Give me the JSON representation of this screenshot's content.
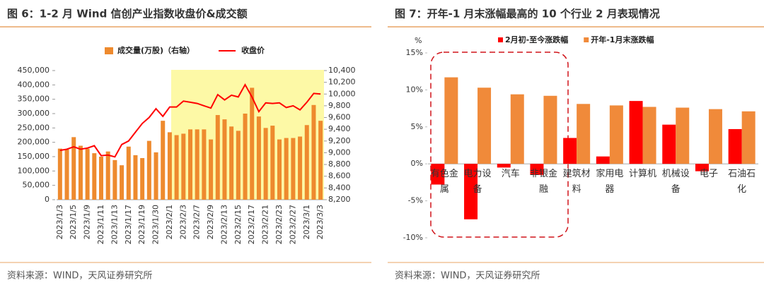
{
  "chart_data": [
    {
      "type": "combo",
      "title": "图 6：1-2 月 Wind 信创产业指数收盘价&成交额",
      "source": "资料来源：WIND，天风证券研究所",
      "categories": [
        "2023/1/3",
        null,
        "2023/1/5",
        null,
        "2023/1/9",
        null,
        "2023/1/11",
        null,
        "2023/1/13",
        null,
        "2023/1/17",
        null,
        "2023/1/19",
        null,
        "2023/1/30",
        null,
        "2023/2/1",
        null,
        "2023/2/3",
        null,
        "2023/2/7",
        null,
        "2023/2/9",
        null,
        "2023/2/13",
        null,
        "2023/2/15",
        null,
        "2023/2/17",
        null,
        "2023/2/21",
        null,
        "2023/2/23",
        null,
        "2023/2/27",
        null,
        "2023/3/1",
        null,
        "2023/3/3"
      ],
      "series": [
        {
          "name": "成交量(万股)（右轴）",
          "type": "bar",
          "color": "#ee8a2e",
          "values": [
            178000,
            175000,
            218000,
            188000,
            178000,
            162000,
            150000,
            168000,
            138000,
            120000,
            185000,
            155000,
            145000,
            205000,
            165000,
            275000,
            235000,
            225000,
            230000,
            245000,
            245000,
            245000,
            210000,
            295000,
            280000,
            255000,
            240000,
            300000,
            390000,
            290000,
            250000,
            258000,
            210000,
            215000,
            215000,
            220000,
            260000,
            330000,
            275000
          ]
        },
        {
          "name": "收盘价",
          "type": "line",
          "axis": "y2",
          "color": "#ff0000",
          "values": [
            9040,
            9060,
            9100,
            9060,
            9080,
            9120,
            8950,
            8960,
            8930,
            9140,
            9200,
            9350,
            9500,
            9600,
            9750,
            9620,
            9780,
            9780,
            9880,
            9860,
            9840,
            9800,
            9760,
            9990,
            9900,
            9980,
            9950,
            10160,
            9950,
            9700,
            9850,
            9840,
            9850,
            9770,
            9800,
            9730,
            9860,
            10010,
            10000
          ]
        }
      ],
      "ylim": [
        0,
        450000
      ],
      "yticks": [
        0,
        {
          "value": 50000,
          "label": "50,000"
        },
        {
          "value": 100000,
          "label": "100,000"
        },
        {
          "value": 150000,
          "label": "150,000"
        },
        {
          "value": 200000,
          "label": "200,000"
        },
        {
          "value": 250000,
          "label": "250,000"
        },
        {
          "value": 300000,
          "label": "300,000"
        },
        {
          "value": 350000,
          "label": "350,000"
        },
        {
          "value": 400000,
          "label": "400,000"
        },
        {
          "value": 450000,
          "label": "450,000"
        }
      ],
      "y2lim": [
        8200,
        10400
      ],
      "y2ticks": [
        {
          "value": 8200,
          "label": "8,200"
        },
        {
          "value": 8400,
          "label": "8,400"
        },
        {
          "value": 8600,
          "label": "8,600"
        },
        {
          "value": 8800,
          "label": "8,800"
        },
        {
          "value": 9000,
          "label": "9,000"
        },
        {
          "value": 9200,
          "label": "9,200"
        },
        {
          "value": 9400,
          "label": "9,400"
        },
        {
          "value": 9600,
          "label": "9,600"
        },
        {
          "value": 9800,
          "label": "9,800"
        },
        {
          "value": 10000,
          "label": "10,000"
        },
        {
          "value": 10200,
          "label": "10,200"
        },
        {
          "value": 10400,
          "label": "10,400"
        }
      ]
    },
    {
      "type": "bar",
      "title": "图 7：开年-1 月末涨幅最高的 10 个行业 2 月表现情况",
      "source": "资料来源：WIND，天风证券研究所",
      "y_label": "%",
      "categories": [
        "有色金属",
        "电力设备",
        "汽车",
        "非银金融",
        "建筑材料",
        "家用电器",
        "计算机",
        "机械设备",
        "电子",
        "石油石化"
      ],
      "series": [
        {
          "name": "2月初-至今涨跌幅",
          "color": "#ff0000",
          "values": [
            -2.8,
            -7.5,
            -0.5,
            -1.5,
            3.5,
            1.0,
            8.5,
            5.3,
            -1.0,
            4.7
          ]
        },
        {
          "name": "开年-1月末涨跌幅",
          "color": "#f08a3a",
          "values": [
            11.7,
            10.3,
            9.4,
            9.2,
            8.1,
            7.9,
            7.7,
            7.6,
            7.4,
            7.1
          ]
        }
      ],
      "ylim": [
        -10,
        15
      ],
      "yticks": [
        {
          "value": -10,
          "label": "-10%"
        },
        {
          "value": -5,
          "label": "-5%"
        },
        {
          "value": 0,
          "label": "0%"
        },
        {
          "value": 5,
          "label": "5%"
        },
        {
          "value": 10,
          "label": "10%"
        },
        {
          "value": 15,
          "label": "15%"
        }
      ]
    }
  ]
}
